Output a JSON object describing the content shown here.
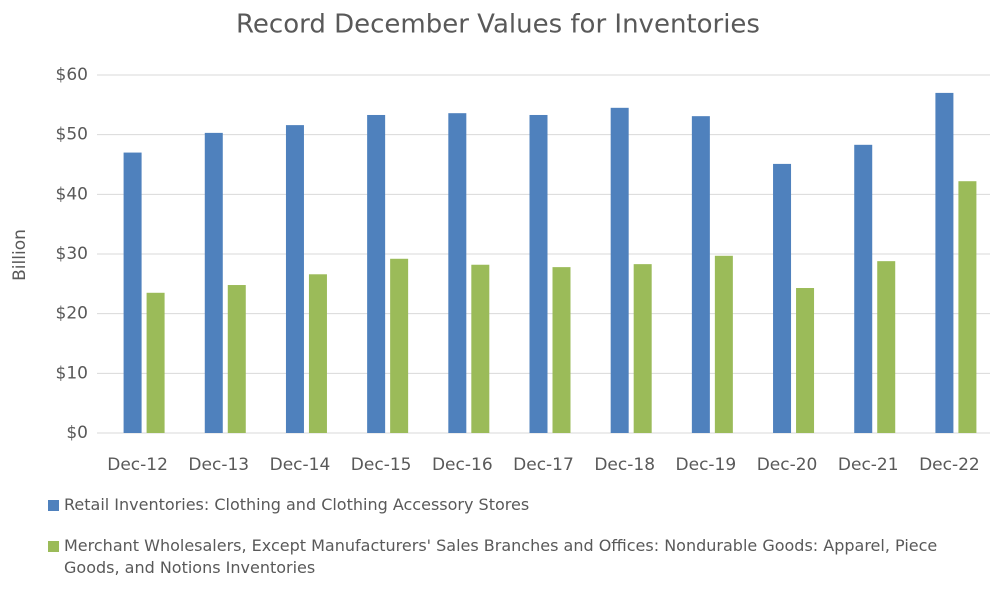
{
  "chart_data": {
    "type": "bar",
    "title": "Record December Values for Inventories",
    "y_label": "Billion",
    "categories": [
      "Dec-12",
      "Dec-13",
      "Dec-14",
      "Dec-15",
      "Dec-16",
      "Dec-17",
      "Dec-18",
      "Dec-19",
      "Dec-20",
      "Dec-21",
      "Dec-22"
    ],
    "series": [
      {
        "name": "Retail Inventories: Clothing and Clothing Accessory Stores",
        "color": "#4f81bd",
        "values": [
          47.0,
          50.3,
          51.6,
          53.3,
          53.6,
          53.3,
          54.5,
          53.1,
          45.1,
          48.3,
          57.0
        ]
      },
      {
        "name": "Merchant Wholesalers, Except Manufacturers' Sales Branches and Offices: Nondurable Goods: Apparel, Piece Goods, and Notions Inventories",
        "color": "#9bbb59",
        "values": [
          23.5,
          24.8,
          26.6,
          29.2,
          28.2,
          27.8,
          28.3,
          29.7,
          24.3,
          28.8,
          42.2
        ]
      }
    ],
    "ylim": [
      0,
      60
    ],
    "yticks": [
      {
        "value": 0,
        "label": "$0"
      },
      {
        "value": 10,
        "label": "$10"
      },
      {
        "value": 20,
        "label": "$20"
      },
      {
        "value": 30,
        "label": "$30"
      },
      {
        "value": 40,
        "label": "$40"
      },
      {
        "value": 50,
        "label": "$50"
      },
      {
        "value": 60,
        "label": "$60"
      }
    ],
    "grid": true,
    "legend": "bottom"
  }
}
